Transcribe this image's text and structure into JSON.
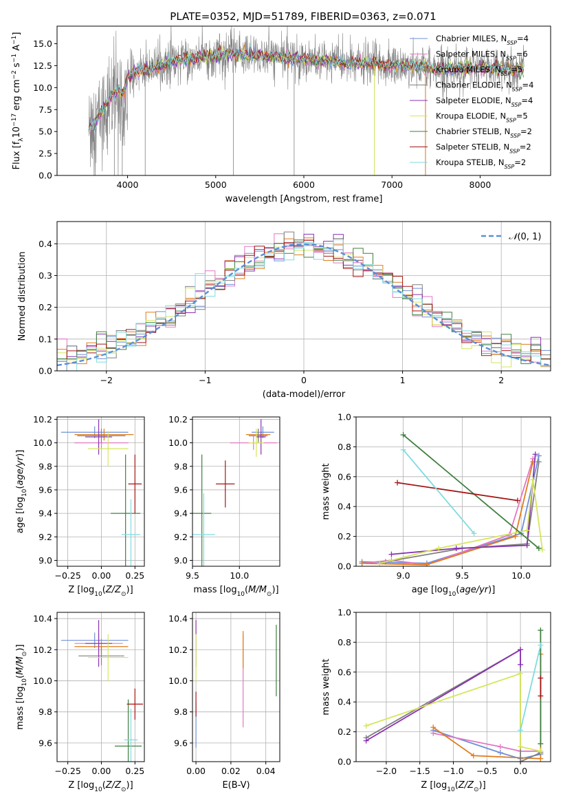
{
  "figure": {
    "title": "PLATE=0352, MJD=51789, FIBERID=0363, z=0.071"
  },
  "palette": {
    "Chabrier MILES": "#6e8fd6",
    "Salpeter MILES": "#e377c2",
    "Kroupa MILES": "#e07b1a",
    "Chabrier ELODIE": "#7f7f7f",
    "Salpeter ELODIE": "#8a30b0",
    "Kroupa ELODIE": "#d4e65a",
    "Chabrier STELIB": "#3f7f3f",
    "Salpeter STELIB": "#a51515",
    "Kroupa STELIB": "#7fdbe0"
  },
  "chart_data": [
    {
      "id": "spectrum",
      "type": "line",
      "title": "PLATE=0352, MJD=51789, FIBERID=0363, z=0.071",
      "xlabel": "wavelength [Angstrom, rest frame]",
      "ylabel": "Flux [f_λ 10^-17 erg cm^-2 s^-1 A^-1]",
      "xlim": [
        3200,
        8800
      ],
      "ylim": [
        0,
        17
      ],
      "xticks": [
        "4000",
        "5000",
        "6000",
        "7000",
        "8000"
      ],
      "yticks": [
        "0.0",
        "2.5",
        "5.0",
        "7.5",
        "10.0",
        "12.5",
        "15.0"
      ],
      "legend_position": "upper-right",
      "legend": [
        "Chabrier MILES, N_SSP=4",
        "Salpeter MILES, N_SSP=6",
        "Kroupa MILES, N_SSP=5",
        "Chabrier ELODIE, N_SSP=4",
        "Salpeter ELODIE, N_SSP=4",
        "Kroupa ELODIE, N_SSP=5",
        "Chabrier STELIB, N_SSP=2",
        "Salpeter STELIB, N_SSP=2",
        "Kroupa STELIB, N_SSP=2"
      ],
      "model_level": [
        [
          3550,
          5.2
        ],
        [
          3700,
          7.0
        ],
        [
          3800,
          8.8
        ],
        [
          3900,
          9.8
        ],
        [
          3950,
          9.2
        ],
        [
          4000,
          11.2
        ],
        [
          4100,
          11.8
        ],
        [
          4300,
          12.2
        ],
        [
          4500,
          13.0
        ],
        [
          4800,
          13.4
        ],
        [
          5000,
          13.6
        ],
        [
          5200,
          13.9
        ],
        [
          5500,
          13.6
        ],
        [
          5800,
          13.4
        ],
        [
          6000,
          13.2
        ],
        [
          6300,
          13.0
        ],
        [
          6500,
          12.8
        ],
        [
          6800,
          12.7
        ],
        [
          7000,
          12.5
        ],
        [
          7300,
          12.4
        ],
        [
          7500,
          12.2
        ],
        [
          8000,
          12.2
        ],
        [
          8200,
          12.3
        ],
        [
          8500,
          12.0
        ]
      ],
      "data_noise": 1.2
    },
    {
      "id": "residual-hist",
      "type": "histogram",
      "xlabel": "(data-model)/error",
      "ylabel": "Normed distribution",
      "xlim": [
        -2.5,
        2.5
      ],
      "ylim": [
        0,
        0.47
      ],
      "xticks": [
        "−2",
        "−1",
        "0",
        "1",
        "2"
      ],
      "yticks": [
        "0.0",
        "0.1",
        "0.2",
        "0.3",
        "0.4"
      ],
      "grid": true,
      "legend_position": "upper-right",
      "legend": [
        "𝒩(0,1)"
      ],
      "reference_curve": "normal(0,1)",
      "bin_width": 0.1
    },
    {
      "id": "age-vs-Z",
      "type": "errorbar",
      "xlabel": "Z [log10(Z/Z⊙)]",
      "ylabel": "age [log10(age/yr)]",
      "xlim": [
        -0.33,
        0.32
      ],
      "ylim": [
        8.95,
        10.22
      ],
      "xticks": [
        "−0.25",
        "0.00",
        "0.25"
      ],
      "yticks": [
        "9.0",
        "9.2",
        "9.4",
        "9.6",
        "9.8",
        "10.0",
        "10.2"
      ],
      "grid": true,
      "points": [
        {
          "model": "Chabrier MILES",
          "x": -0.05,
          "xerr": 0.25,
          "y": 10.09,
          "yerr": 0.05
        },
        {
          "model": "Salpeter MILES",
          "x": 0.0,
          "xerr": 0.2,
          "y": 10.0,
          "yerr": 0.05
        },
        {
          "model": "Kroupa MILES",
          "x": 0.02,
          "xerr": 0.22,
          "y": 10.07,
          "yerr": 0.05
        },
        {
          "model": "Chabrier ELODIE",
          "x": 0.0,
          "xerr": 0.18,
          "y": 10.06,
          "yerr": 0.06
        },
        {
          "model": "Salpeter ELODIE",
          "x": -0.02,
          "xerr": 0.1,
          "y": 10.05,
          "yerr": 0.15
        },
        {
          "model": "Kroupa ELODIE",
          "x": 0.05,
          "xerr": 0.15,
          "y": 9.95,
          "yerr": 0.15
        },
        {
          "model": "Chabrier STELIB",
          "x": 0.18,
          "xerr": 0.11,
          "y": 9.4,
          "yerr": 0.5
        },
        {
          "model": "Salpeter STELIB",
          "x": 0.25,
          "xerr": 0.05,
          "y": 9.65,
          "yerr": 0.25
        },
        {
          "model": "Kroupa STELIB",
          "x": 0.22,
          "xerr": 0.07,
          "y": 9.22,
          "yerr": 0.3
        }
      ]
    },
    {
      "id": "age-vs-mass",
      "type": "errorbar",
      "xlabel": "mass [log10(M/M⊙)]",
      "xlim": [
        9.5,
        10.43
      ],
      "ylim": [
        8.95,
        10.22
      ],
      "xticks": [
        "9.5",
        "10.0"
      ],
      "yticks": [
        "9.0",
        "9.2",
        "9.4",
        "9.6",
        "9.8",
        "10.0",
        "10.2"
      ],
      "grid": true,
      "points": [
        {
          "model": "Chabrier MILES",
          "x": 10.25,
          "xerr": 0.12,
          "y": 10.09,
          "yerr": 0.05
        },
        {
          "model": "Salpeter MILES",
          "x": 10.15,
          "xerr": 0.25,
          "y": 10.0,
          "yerr": 0.06
        },
        {
          "model": "Kroupa MILES",
          "x": 10.2,
          "xerr": 0.13,
          "y": 10.07,
          "yerr": 0.05
        },
        {
          "model": "Chabrier ELODIE",
          "x": 10.2,
          "xerr": 0.1,
          "y": 10.06,
          "yerr": 0.06
        },
        {
          "model": "Salpeter ELODIE",
          "x": 10.23,
          "xerr": 0.05,
          "y": 10.05,
          "yerr": 0.15
        },
        {
          "model": "Kroupa ELODIE",
          "x": 10.18,
          "xerr": 0.08,
          "y": 10.0,
          "yerr": 0.12
        },
        {
          "model": "Chabrier STELIB",
          "x": 9.6,
          "xerr": 0.1,
          "y": 9.4,
          "yerr": 0.5
        },
        {
          "model": "Salpeter STELIB",
          "x": 9.85,
          "xerr": 0.1,
          "y": 9.65,
          "yerr": 0.2
        },
        {
          "model": "Kroupa STELIB",
          "x": 9.62,
          "xerr": 0.12,
          "y": 9.22,
          "yerr": 0.35
        }
      ]
    },
    {
      "id": "weight-vs-age",
      "type": "line",
      "xlabel": "age [log10(age/yr)]",
      "ylabel": "mass weight",
      "xlim": [
        8.6,
        10.25
      ],
      "ylim": [
        0,
        1
      ],
      "xticks": [
        "9.0",
        "9.5",
        "10.0"
      ],
      "yticks": [
        "0.0",
        "0.2",
        "0.4",
        "0.6",
        "0.8",
        "1.0"
      ],
      "grid": true,
      "series": [
        {
          "model": "Chabrier MILES",
          "points": [
            [
              8.65,
              0.03
            ],
            [
              9.2,
              0.02
            ],
            [
              10.0,
              0.22
            ],
            [
              10.15,
              0.74
            ]
          ]
        },
        {
          "model": "Salpeter MILES",
          "points": [
            [
              8.65,
              0.02
            ],
            [
              8.9,
              0.04
            ],
            [
              9.2,
              0.01
            ],
            [
              9.9,
              0.21
            ],
            [
              10.1,
              0.72
            ]
          ]
        },
        {
          "model": "Kroupa MILES",
          "points": [
            [
              8.65,
              0.02
            ],
            [
              9.2,
              0.01
            ],
            [
              9.95,
              0.2
            ],
            [
              10.1,
              0.7
            ]
          ]
        },
        {
          "model": "Chabrier ELODIE",
          "points": [
            [
              8.85,
              0.03
            ],
            [
              9.5,
              0.12
            ],
            [
              10.05,
              0.15
            ],
            [
              10.15,
              0.7
            ]
          ]
        },
        {
          "model": "Salpeter ELODIE",
          "points": [
            [
              8.9,
              0.08
            ],
            [
              9.45,
              0.12
            ],
            [
              10.05,
              0.14
            ],
            [
              10.12,
              0.75
            ]
          ]
        },
        {
          "model": "Kroupa ELODIE",
          "points": [
            [
              8.8,
              0.02
            ],
            [
              9.3,
              0.12
            ],
            [
              10.05,
              0.24
            ],
            [
              10.1,
              0.58
            ],
            [
              10.18,
              0.11
            ]
          ]
        },
        {
          "model": "Chabrier STELIB",
          "points": [
            [
              9.0,
              0.88
            ],
            [
              10.15,
              0.12
            ]
          ]
        },
        {
          "model": "Salpeter STELIB",
          "points": [
            [
              8.95,
              0.56
            ],
            [
              9.97,
              0.44
            ]
          ]
        },
        {
          "model": "Kroupa STELIB",
          "points": [
            [
              9.0,
              0.78
            ],
            [
              9.6,
              0.22
            ]
          ]
        }
      ]
    },
    {
      "id": "mass-vs-Z",
      "type": "errorbar",
      "xlabel": "Z [log10(Z/Z⊙)]",
      "ylabel": "mass [log10(M/M⊙)]",
      "xlim": [
        -0.33,
        0.32
      ],
      "ylim": [
        9.48,
        10.44
      ],
      "xticks": [
        "−0.25",
        "0.00",
        "0.25"
      ],
      "yticks": [
        "9.6",
        "9.8",
        "10.0",
        "10.2",
        "10.4"
      ],
      "grid": true,
      "points": [
        {
          "model": "Chabrier MILES",
          "x": -0.05,
          "xerr": 0.25,
          "y": 10.26,
          "yerr": 0.05
        },
        {
          "model": "Salpeter MILES",
          "x": -0.02,
          "xerr": 0.18,
          "y": 10.24,
          "yerr": 0.06
        },
        {
          "model": "Kroupa MILES",
          "x": 0.0,
          "xerr": 0.2,
          "y": 10.22,
          "yerr": 0.05
        },
        {
          "model": "Chabrier ELODIE",
          "x": 0.0,
          "xerr": 0.17,
          "y": 10.16,
          "yerr": 0.06
        },
        {
          "model": "Salpeter ELODIE",
          "x": -0.02,
          "xerr": 0.1,
          "y": 10.24,
          "yerr": 0.15
        },
        {
          "model": "Kroupa ELODIE",
          "x": 0.05,
          "xerr": 0.15,
          "y": 10.15,
          "yerr": 0.15
        },
        {
          "model": "Chabrier STELIB",
          "x": 0.2,
          "xerr": 0.1,
          "y": 9.58,
          "yerr": 0.3
        },
        {
          "model": "Salpeter STELIB",
          "x": 0.25,
          "xerr": 0.06,
          "y": 9.85,
          "yerr": 0.1
        },
        {
          "model": "Kroupa STELIB",
          "x": 0.22,
          "xerr": 0.05,
          "y": 9.62,
          "yerr": 0.2
        }
      ]
    },
    {
      "id": "mass-vs-ebv",
      "type": "errorbar",
      "xlabel": "E(B-V)",
      "xlim": [
        -0.002,
        0.048
      ],
      "ylim": [
        9.48,
        10.44
      ],
      "xticks": [
        "0.00",
        "0.02",
        "0.04"
      ],
      "yticks": [
        "9.6",
        "9.8",
        "10.0",
        "10.2",
        "10.4"
      ],
      "grid": true,
      "points": [
        {
          "model": "Salpeter ELODIE",
          "x": 0.0,
          "xerr": 0,
          "y": 10.24,
          "yerr": 0.15
        },
        {
          "model": "Kroupa ELODIE",
          "x": 0.0,
          "xerr": 0,
          "y": 10.15,
          "yerr": 0.15
        },
        {
          "model": "Chabrier MILES",
          "x": 0.0,
          "xerr": 0,
          "y": 9.72,
          "yerr": 0.15
        },
        {
          "model": "Salpeter STELIB",
          "x": 0.0,
          "xerr": 0,
          "y": 9.85,
          "yerr": 0.08
        },
        {
          "model": "Salpeter MILES",
          "x": 0.027,
          "xerr": 0,
          "y": 10.0,
          "yerr": 0.3
        },
        {
          "model": "Kroupa MILES",
          "x": 0.027,
          "xerr": 0,
          "y": 10.2,
          "yerr": 0.12
        },
        {
          "model": "Chabrier STELIB",
          "x": 0.046,
          "xerr": 0,
          "y": 10.13,
          "yerr": 0.23
        }
      ]
    },
    {
      "id": "weight-vs-Z",
      "type": "line",
      "xlabel": "Z [log10(Z/Z⊙)]",
      "ylabel": "mass weight",
      "xlim": [
        -2.45,
        0.45
      ],
      "ylim": [
        0,
        1
      ],
      "xticks": [
        "−2.0",
        "−1.5",
        "−1.0",
        "−0.5",
        "0.0"
      ],
      "yticks": [
        "0.0",
        "0.2",
        "0.4",
        "0.6",
        "0.8",
        "1.0"
      ],
      "grid": true,
      "series": [
        {
          "model": "Chabrier MILES",
          "points": [
            [
              -1.3,
              0.21
            ],
            [
              -0.3,
              0.06
            ],
            [
              0.0,
              0.02
            ],
            [
              0.3,
              0.05
            ]
          ]
        },
        {
          "model": "Salpeter MILES",
          "points": [
            [
              -1.3,
              0.19
            ],
            [
              -0.3,
              0.1
            ],
            [
              0.0,
              0.07
            ],
            [
              0.3,
              0.07
            ]
          ]
        },
        {
          "model": "Kroupa MILES",
          "points": [
            [
              -1.3,
              0.23
            ],
            [
              -0.7,
              0.04
            ],
            [
              0.3,
              0.02
            ],
            [
              0.3,
              0.72
            ]
          ]
        },
        {
          "model": "Chabrier ELODIE",
          "points": [
            [
              -2.3,
              0.16
            ],
            [
              0.0,
              0.75
            ],
            [
              0.0,
              0.0
            ],
            [
              0.3,
              0.06
            ]
          ]
        },
        {
          "model": "Salpeter ELODIE",
          "points": [
            [
              -2.3,
              0.14
            ],
            [
              0.0,
              0.75
            ],
            [
              0.0,
              0.65
            ]
          ]
        },
        {
          "model": "Kroupa ELODIE",
          "points": [
            [
              -2.3,
              0.24
            ],
            [
              0.0,
              0.59
            ],
            [
              0.0,
              0.1
            ],
            [
              0.3,
              0.07
            ]
          ]
        },
        {
          "model": "Chabrier STELIB",
          "points": [
            [
              0.3,
              0.88
            ],
            [
              0.3,
              0.12
            ]
          ]
        },
        {
          "model": "Salpeter STELIB",
          "points": [
            [
              0.3,
              0.56
            ],
            [
              0.3,
              0.44
            ]
          ]
        },
        {
          "model": "Kroupa STELIB",
          "points": [
            [
              0.0,
              0.21
            ],
            [
              0.3,
              0.78
            ]
          ]
        }
      ]
    }
  ]
}
